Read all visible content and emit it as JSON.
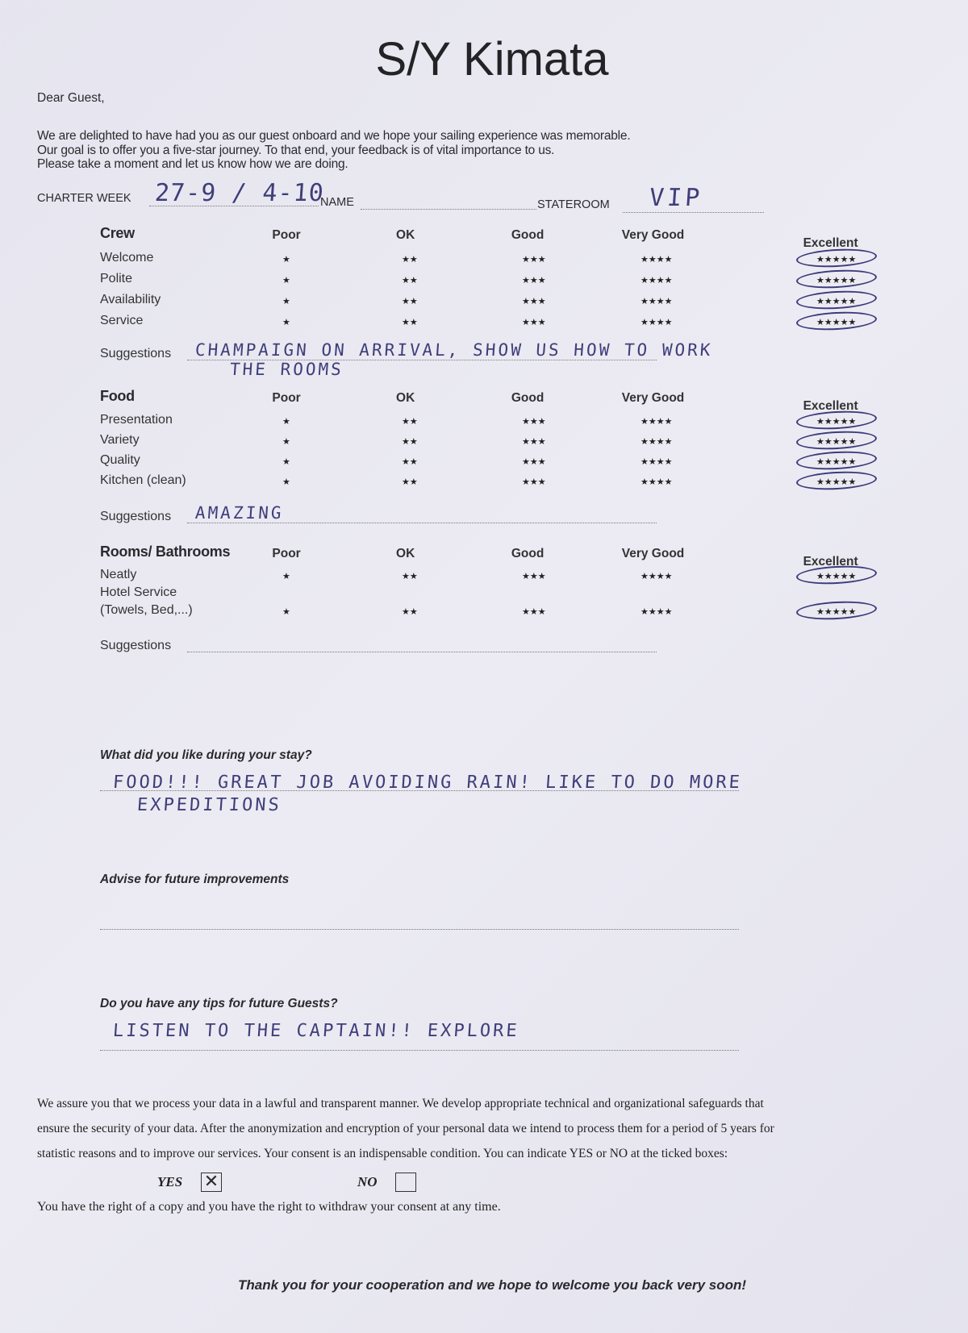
{
  "title": "S/Y Kimata",
  "greeting": "Dear Guest,",
  "intro": [
    "We are delighted to have had you as our guest onboard and we hope your sailing experience was memorable.",
    "Our goal is to offer you a five-star journey. To that end, your feedback is of vital importance to us.",
    "Please take a moment and let us know how we are doing."
  ],
  "header_fields": {
    "charter_week_label": "CHARTER WEEK",
    "charter_week_value": "27-9 / 4-10",
    "name_label": "NAME",
    "name_value": "",
    "stateroom_label": "STATEROOM",
    "stateroom_value": "VIP"
  },
  "columns": [
    "Poor",
    "OK",
    "Good",
    "Very Good",
    "Excellent"
  ],
  "star_glyphs": [
    "★",
    "★★",
    "★★★",
    "★★★★",
    "★★★★★"
  ],
  "circle_color": "#3c3b7a",
  "sections": [
    {
      "name": "Crew",
      "items": [
        {
          "label": "Welcome",
          "rating": 5
        },
        {
          "label": "Polite",
          "rating": 5
        },
        {
          "label": "Availability",
          "rating": 5
        },
        {
          "label": "Service",
          "rating": 5
        }
      ],
      "suggestions_label": "Suggestions",
      "suggestions": [
        "CHAMPAIGN ON ARRIVAL, SHOW US HOW TO WORK",
        "THE ROOMS"
      ]
    },
    {
      "name": "Food",
      "items": [
        {
          "label": "Presentation",
          "rating": 5
        },
        {
          "label": "Variety",
          "rating": 5
        },
        {
          "label": "Quality",
          "rating": 5
        },
        {
          "label": "Kitchen (clean)",
          "rating": 5
        }
      ],
      "suggestions_label": "Suggestions",
      "suggestions": [
        "AMAZING"
      ]
    },
    {
      "name": "Rooms/ Bathrooms",
      "items": [
        {
          "label": "Neatly",
          "rating": 5
        },
        {
          "label": "Hotel Service\n(Towels, Bed,...)",
          "rating": 5
        }
      ],
      "suggestions_label": "Suggestions",
      "suggestions": []
    }
  ],
  "questions": [
    {
      "q": "What did you like during your stay?",
      "a": [
        "FOOD!!! GREAT JOB AVOIDING RAIN! LIKE TO DO MORE",
        "EXPEDITIONS"
      ]
    },
    {
      "q": "Advise for future improvements",
      "a": []
    },
    {
      "q": "Do you have any tips for future Guests?",
      "a": [
        "LISTEN TO THE CAPTAIN!! EXPLORE"
      ]
    }
  ],
  "consent": {
    "lines": [
      "We assure you that we process your data in a lawful and transparent manner. We develop appropriate technical and organizational safeguards that",
      "ensure the security of your data. After the anonymization and encryption of your personal data we intend to process them for a period of 5 years for",
      "statistic reasons and to improve our services. Your consent is an indispensable condition. You can indicate YES or NO at the ticked boxes:"
    ],
    "yes_label": "YES",
    "yes_checked": true,
    "no_label": "NO",
    "no_checked": false,
    "rights": "You have the right of a copy and you have the right to withdraw your consent at any time."
  },
  "closing": "Thank you for your cooperation and we hope to welcome you back very soon!"
}
